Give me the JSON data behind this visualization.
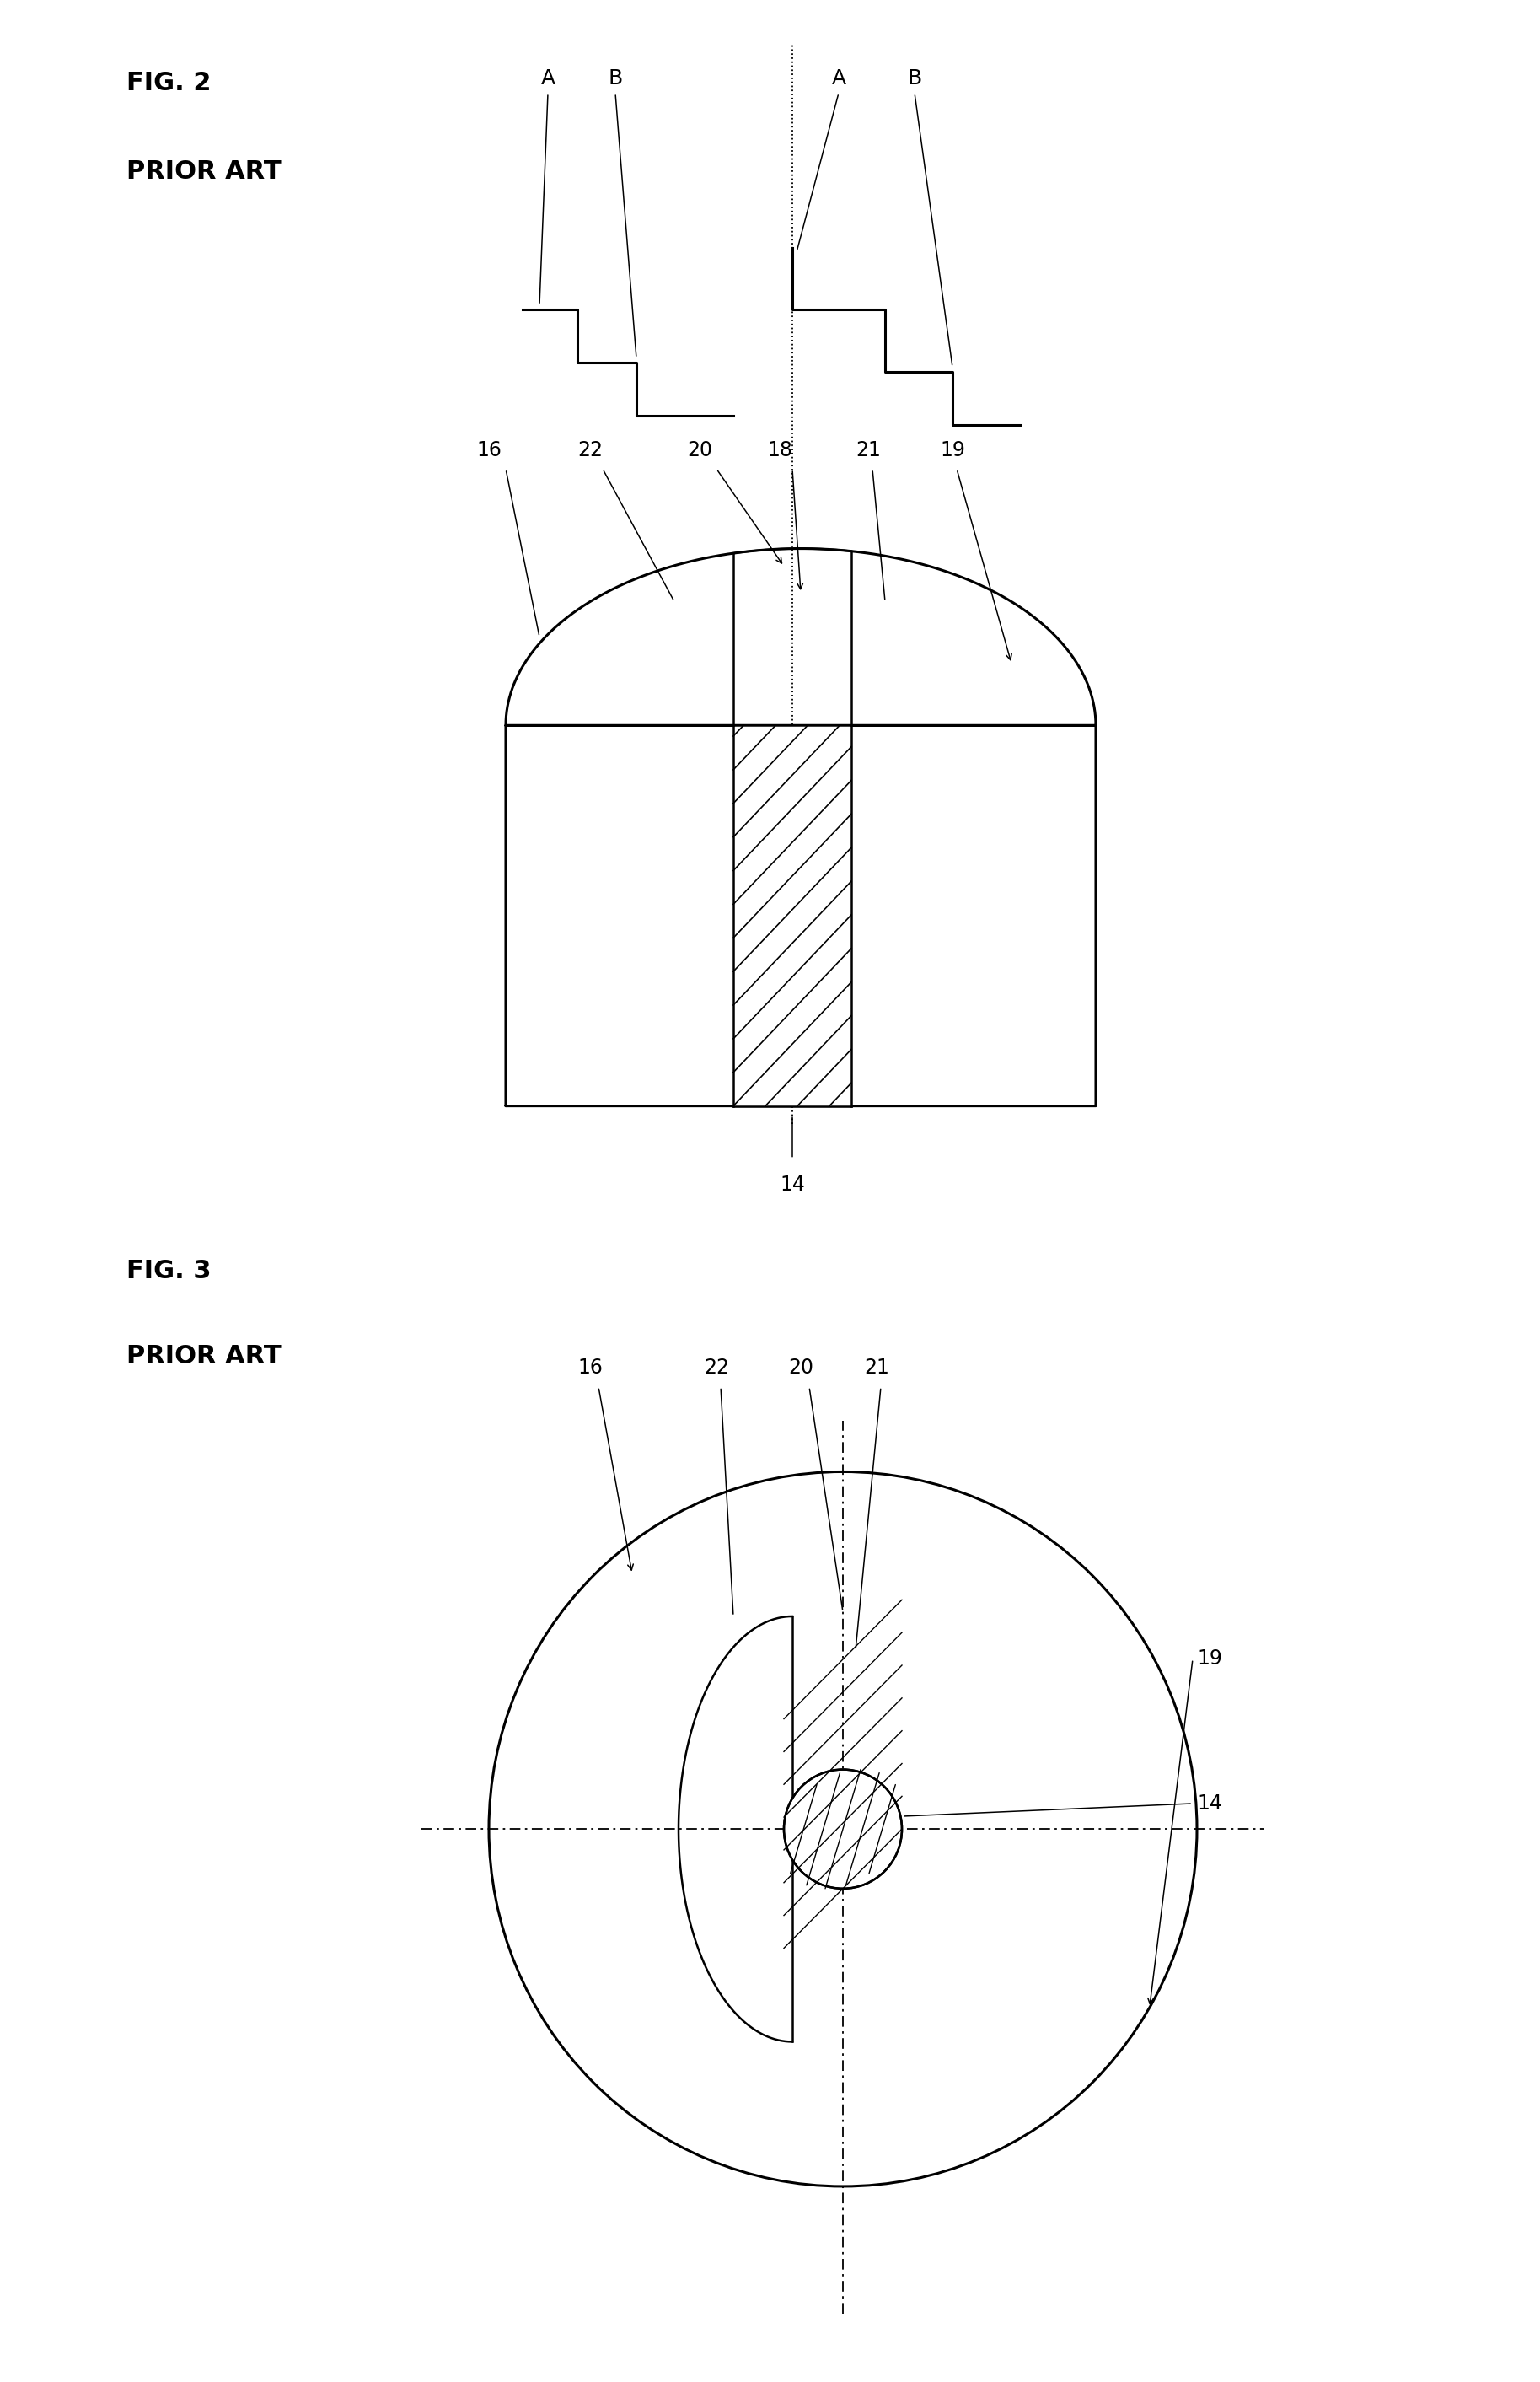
{
  "fig2_title": "FIG. 2",
  "fig2_subtitle": "PRIOR ART",
  "fig3_title": "FIG. 3",
  "fig3_subtitle": "PRIOR ART",
  "bg_color": "#ffffff",
  "line_color": "#000000",
  "hatch_color": "#000000",
  "text_color": "#000000",
  "font_size_label": 18,
  "font_size_number": 17,
  "font_size_title": 22
}
